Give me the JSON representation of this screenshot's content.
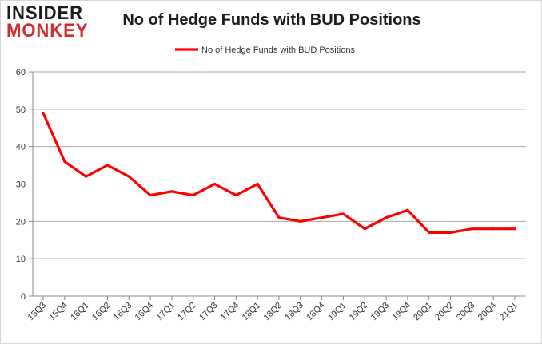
{
  "logo": {
    "line1": "INSIDER",
    "line2": "MONKEY"
  },
  "chart_data": {
    "type": "line",
    "title": "No of Hedge Funds with BUD Positions",
    "xlabel": "",
    "ylabel": "",
    "categories": [
      "15Q3",
      "15Q4",
      "16Q1",
      "16Q2",
      "16Q3",
      "16Q4",
      "17Q1",
      "17Q2",
      "17Q3",
      "17Q4",
      "18Q1",
      "18Q2",
      "18Q3",
      "18Q4",
      "19Q1",
      "19Q2",
      "19Q3",
      "19Q4",
      "20Q1",
      "20Q2",
      "20Q3",
      "20Q4",
      "21Q1"
    ],
    "series": [
      {
        "name": "No of Hedge Funds with BUD Positions",
        "color": "#ff0000",
        "values": [
          49,
          36,
          32,
          35,
          32,
          27,
          28,
          27,
          30,
          27,
          30,
          21,
          20,
          21,
          22,
          18,
          21,
          23,
          17,
          17,
          18,
          18,
          18
        ]
      }
    ],
    "ylim": [
      0,
      60
    ],
    "yticks": [
      0,
      10,
      20,
      30,
      40,
      50,
      60
    ],
    "grid": true,
    "legend": "top-center"
  }
}
